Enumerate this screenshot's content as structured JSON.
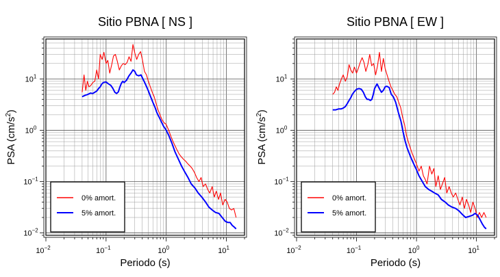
{
  "chart_data": [
    {
      "type": "line",
      "title": "Sitio PBNA [ NS ]",
      "xlabel": "Periodo (s)",
      "ylabel_main": "PSA (cm/s",
      "ylabel_sup": "2",
      "ylabel_tail": ")",
      "x_scale": "log",
      "y_scale": "log",
      "xlim": [
        0.01,
        20
      ],
      "ylim": [
        0.009,
        60
      ],
      "x_ticks": [
        {
          "base": "10",
          "exp": "−2",
          "value": 0.01
        },
        {
          "base": "10",
          "exp": "−1",
          "value": 0.1
        },
        {
          "base": "10",
          "exp": "0",
          "value": 1
        },
        {
          "base": "10",
          "exp": "1",
          "value": 10
        }
      ],
      "y_ticks": [
        {
          "base": "10",
          "exp": "−2",
          "value": 0.01
        },
        {
          "base": "10",
          "exp": "−1",
          "value": 0.1
        },
        {
          "base": "10",
          "exp": "0",
          "value": 1
        },
        {
          "base": "10",
          "exp": "1",
          "value": 10
        }
      ],
      "grid": true,
      "legend_position": "bottom-left",
      "series": [
        {
          "name": "0% amort.",
          "color": "#ff0000",
          "x": [
            0.04,
            0.043,
            0.046,
            0.049,
            0.052,
            0.056,
            0.06,
            0.065,
            0.07,
            0.075,
            0.08,
            0.086,
            0.092,
            0.1,
            0.107,
            0.115,
            0.124,
            0.133,
            0.143,
            0.154,
            0.166,
            0.179,
            0.193,
            0.208,
            0.224,
            0.241,
            0.26,
            0.28,
            0.3,
            0.323,
            0.348,
            0.375,
            0.404,
            0.435,
            0.469,
            0.505,
            0.544,
            0.586,
            0.631,
            0.68,
            0.73,
            0.79,
            0.85,
            0.92,
            1.0,
            1.1,
            1.2,
            1.3,
            1.4,
            1.5,
            1.65,
            1.8,
            1.95,
            2.1,
            2.3,
            2.5,
            2.7,
            2.95,
            3.2,
            3.5,
            3.8,
            4.1,
            4.5,
            4.9,
            5.3,
            5.8,
            6.3,
            6.8,
            7.4,
            8.0,
            8.7,
            9.5,
            10.3,
            11.2,
            12.2,
            13.3,
            14.5
          ],
          "y": [
            5.5,
            12,
            6,
            9,
            7,
            7.5,
            8.5,
            9,
            15,
            10,
            30,
            24,
            33,
            20,
            23,
            13,
            19,
            28,
            30,
            22,
            15,
            18,
            20,
            19,
            21,
            27,
            22,
            47,
            32,
            24,
            30,
            34,
            23,
            14,
            12,
            9,
            7,
            5.5,
            4.5,
            3.3,
            2.5,
            2.0,
            1.6,
            1.4,
            1.3,
            1.0,
            0.75,
            0.6,
            0.5,
            0.42,
            0.34,
            0.3,
            0.27,
            0.25,
            0.22,
            0.2,
            0.18,
            0.15,
            0.12,
            0.1,
            0.12,
            0.08,
            0.09,
            0.07,
            0.06,
            0.08,
            0.05,
            0.065,
            0.045,
            0.06,
            0.035,
            0.045,
            0.04,
            0.03,
            0.028,
            0.03,
            0.02
          ]
        },
        {
          "name": "5% amort.",
          "color": "#0000ff",
          "x": [
            0.04,
            0.045,
            0.05,
            0.055,
            0.06,
            0.065,
            0.07,
            0.075,
            0.08,
            0.085,
            0.09,
            0.1,
            0.11,
            0.12,
            0.13,
            0.14,
            0.15,
            0.16,
            0.17,
            0.18,
            0.19,
            0.2,
            0.22,
            0.24,
            0.26,
            0.28,
            0.3,
            0.32,
            0.35,
            0.38,
            0.41,
            0.45,
            0.5,
            0.55,
            0.6,
            0.65,
            0.7,
            0.8,
            0.9,
            1.0,
            1.1,
            1.25,
            1.4,
            1.6,
            1.8,
            2.0,
            2.3,
            2.6,
            3.0,
            3.4,
            3.9,
            4.5,
            5.1,
            5.8,
            6.6,
            7.5,
            8.5,
            9.5,
            10.5,
            11.5,
            12.5,
            13.5,
            14.5
          ],
          "y": [
            4.5,
            4.8,
            5.0,
            5.3,
            5.2,
            5.5,
            5.8,
            6.5,
            7.0,
            8.0,
            8.5,
            8.7,
            8.0,
            7.5,
            6.5,
            5.5,
            5.2,
            5.6,
            7.0,
            8.3,
            9.0,
            8.5,
            9.5,
            11.5,
            13,
            15,
            14,
            12,
            11.5,
            12,
            10,
            8,
            6,
            4.5,
            3.5,
            2.8,
            2.2,
            1.6,
            1.2,
            1.0,
            0.8,
            0.55,
            0.38,
            0.27,
            0.2,
            0.16,
            0.12,
            0.09,
            0.075,
            0.06,
            0.05,
            0.04,
            0.032,
            0.028,
            0.025,
            0.024,
            0.02,
            0.017,
            0.016,
            0.016,
            0.014,
            0.013,
            0.012
          ]
        }
      ]
    },
    {
      "type": "line",
      "title": "Sitio PBNA [ EW ]",
      "xlabel": "Periodo (s)",
      "ylabel_main": "PSA (cm/s",
      "ylabel_sup": "2",
      "ylabel_tail": ")",
      "x_scale": "log",
      "y_scale": "log",
      "xlim": [
        0.01,
        20
      ],
      "ylim": [
        0.009,
        60
      ],
      "x_ticks": [
        {
          "base": "10",
          "exp": "−2",
          "value": 0.01
        },
        {
          "base": "10",
          "exp": "−1",
          "value": 0.1
        },
        {
          "base": "10",
          "exp": "0",
          "value": 1
        },
        {
          "base": "10",
          "exp": "1",
          "value": 10
        }
      ],
      "y_ticks": [
        {
          "base": "10",
          "exp": "−2",
          "value": 0.01
        },
        {
          "base": "10",
          "exp": "−1",
          "value": 0.1
        },
        {
          "base": "10",
          "exp": "0",
          "value": 1
        },
        {
          "base": "10",
          "exp": "1",
          "value": 10
        }
      ],
      "grid": true,
      "legend_position": "bottom-left",
      "series": [
        {
          "name": "0% amort.",
          "color": "#ff0000",
          "x": [
            0.04,
            0.043,
            0.046,
            0.049,
            0.052,
            0.056,
            0.06,
            0.065,
            0.07,
            0.075,
            0.08,
            0.086,
            0.092,
            0.1,
            0.107,
            0.115,
            0.124,
            0.133,
            0.143,
            0.154,
            0.166,
            0.179,
            0.193,
            0.208,
            0.224,
            0.241,
            0.26,
            0.28,
            0.3,
            0.323,
            0.348,
            0.375,
            0.404,
            0.435,
            0.469,
            0.505,
            0.544,
            0.586,
            0.631,
            0.68,
            0.73,
            0.79,
            0.85,
            0.92,
            1.0,
            1.1,
            1.2,
            1.3,
            1.4,
            1.5,
            1.65,
            1.8,
            1.95,
            2.1,
            2.3,
            2.5,
            2.7,
            2.95,
            3.2,
            3.5,
            3.8,
            4.1,
            4.5,
            4.9,
            5.3,
            5.8,
            6.3,
            6.8,
            7.4,
            8.0,
            8.7,
            9.5,
            10.3,
            11.2,
            12.2,
            13.3,
            14.5
          ],
          "y": [
            5,
            5.5,
            7,
            6,
            8,
            10,
            12,
            9,
            11,
            19,
            15,
            13,
            17,
            13,
            16,
            21,
            26,
            21,
            14,
            19,
            30,
            18,
            20,
            12,
            18,
            33,
            14,
            25,
            16,
            12,
            9,
            7,
            6,
            5,
            4.5,
            3.5,
            2.8,
            1.8,
            1.3,
            0.8,
            0.6,
            0.45,
            0.35,
            0.28,
            0.22,
            0.16,
            0.2,
            0.13,
            0.11,
            0.09,
            0.2,
            0.14,
            0.18,
            0.08,
            0.13,
            0.07,
            0.09,
            0.12,
            0.06,
            0.08,
            0.06,
            0.05,
            0.06,
            0.045,
            0.035,
            0.05,
            0.03,
            0.045,
            0.035,
            0.025,
            0.04,
            0.03,
            0.02,
            0.025,
            0.02,
            0.025,
            0.02
          ]
        },
        {
          "name": "5% amort.",
          "color": "#0000ff",
          "x": [
            0.04,
            0.045,
            0.05,
            0.055,
            0.06,
            0.065,
            0.07,
            0.075,
            0.08,
            0.085,
            0.09,
            0.1,
            0.11,
            0.12,
            0.13,
            0.14,
            0.15,
            0.16,
            0.17,
            0.18,
            0.19,
            0.2,
            0.22,
            0.24,
            0.26,
            0.28,
            0.3,
            0.32,
            0.35,
            0.38,
            0.41,
            0.45,
            0.5,
            0.55,
            0.6,
            0.65,
            0.7,
            0.8,
            0.9,
            1.0,
            1.1,
            1.25,
            1.4,
            1.6,
            1.8,
            2.0,
            2.3,
            2.6,
            3.0,
            3.4,
            3.9,
            4.5,
            5.1,
            5.8,
            6.6,
            7.5,
            8.5,
            9.5,
            10.5,
            11.5,
            12.5,
            13.5,
            14.5
          ],
          "y": [
            2.5,
            2.5,
            2.6,
            2.6,
            2.7,
            2.9,
            3.3,
            3.8,
            4.3,
            5.0,
            5.5,
            6.3,
            6.5,
            6.3,
            5.5,
            4.5,
            4.0,
            4.0,
            3.8,
            4.0,
            5.0,
            6.5,
            8.0,
            6.5,
            5.5,
            6.0,
            7.0,
            7.2,
            6.8,
            5.0,
            4.5,
            3.5,
            2.2,
            1.5,
            0.9,
            0.6,
            0.45,
            0.3,
            0.22,
            0.17,
            0.13,
            0.1,
            0.08,
            0.07,
            0.065,
            0.06,
            0.055,
            0.045,
            0.04,
            0.035,
            0.032,
            0.03,
            0.027,
            0.023,
            0.02,
            0.021,
            0.022,
            0.024,
            0.022,
            0.018,
            0.015,
            0.013,
            0.012
          ]
        }
      ]
    }
  ]
}
